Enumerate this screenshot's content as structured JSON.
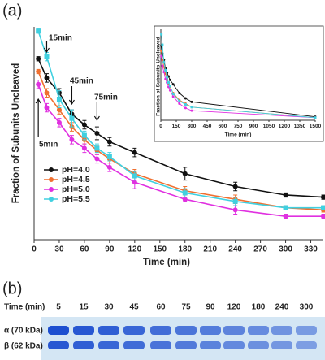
{
  "chart_data": [
    {
      "type": "line",
      "ylabel": "Fraction of Subunits Uncleaved",
      "xlabel": "Time (min)",
      "x": [
        5,
        15,
        30,
        45,
        60,
        75,
        90,
        120,
        180,
        240,
        300,
        345
      ],
      "xlim": [
        0,
        345
      ],
      "xticks": [
        0,
        30,
        60,
        90,
        120,
        150,
        180,
        210,
        240,
        270,
        300,
        330
      ],
      "ylim": [
        0,
        1
      ],
      "legend": "lower-left",
      "annotations": [
        "15min",
        "45min",
        "75min",
        "5min"
      ],
      "series": [
        {
          "name": "pH=4.0",
          "color": "#111111",
          "values": [
            0.85,
            0.76,
            0.69,
            0.59,
            0.54,
            0.5,
            0.46,
            0.41,
            0.31,
            0.25,
            0.21,
            0.2
          ],
          "errors": [
            0.01,
            0.02,
            0.02,
            0.02,
            0.02,
            0.03,
            0.02,
            0.02,
            0.03,
            0.02,
            0.01,
            0.01
          ]
        },
        {
          "name": "pH=4.5",
          "color": "#f07030",
          "values": [
            0.79,
            0.69,
            0.61,
            0.53,
            0.47,
            0.42,
            0.38,
            0.31,
            0.23,
            0.19,
            0.15,
            0.14
          ],
          "errors": [
            0.01,
            0.02,
            0.02,
            0.02,
            0.02,
            0.02,
            0.02,
            0.02,
            0.02,
            0.02,
            0.01,
            0.01
          ]
        },
        {
          "name": "pH=5.0",
          "color": "#e030e0",
          "values": [
            0.73,
            0.62,
            0.55,
            0.47,
            0.43,
            0.38,
            0.34,
            0.27,
            0.19,
            0.14,
            0.11,
            0.11
          ],
          "errors": [
            0.02,
            0.02,
            0.02,
            0.02,
            0.02,
            0.02,
            0.02,
            0.03,
            0.01,
            0.02,
            0.01,
            0.01
          ]
        },
        {
          "name": "pH=5.5",
          "color": "#40d0e0",
          "values": [
            0.98,
            0.86,
            0.66,
            0.57,
            0.49,
            0.43,
            0.39,
            0.3,
            0.22,
            0.18,
            0.15,
            0.15
          ],
          "errors": [
            0.01,
            0.02,
            0.04,
            0.04,
            0.02,
            0.02,
            0.02,
            0.02,
            0.02,
            0.02,
            0.01,
            0.01
          ]
        }
      ]
    },
    {
      "type": "line",
      "ylabel": "Fraction of Subunits Uncleaved",
      "xlabel": "Time (min)",
      "x": [
        5,
        15,
        30,
        45,
        60,
        75,
        90,
        120,
        180,
        240,
        300,
        1500
      ],
      "xlim": [
        0,
        1500
      ],
      "xticks": [
        0,
        150,
        300,
        450,
        600,
        750,
        900,
        1050,
        1200,
        1350,
        1500
      ],
      "ylim": [
        0,
        1
      ],
      "series": [
        {
          "name": "pH=4.0",
          "color": "#111111",
          "values": [
            0.85,
            0.76,
            0.69,
            0.59,
            0.54,
            0.5,
            0.46,
            0.41,
            0.31,
            0.25,
            0.21,
            0.04
          ]
        },
        {
          "name": "pH=4.5",
          "color": "#f07030",
          "values": [
            0.79,
            0.69,
            0.61,
            0.53,
            0.47,
            0.42,
            0.38,
            0.31,
            0.23,
            0.19,
            0.15,
            0.03
          ]
        },
        {
          "name": "pH=5.0",
          "color": "#e030e0",
          "values": [
            0.73,
            0.62,
            0.55,
            0.47,
            0.43,
            0.38,
            0.34,
            0.27,
            0.19,
            0.14,
            0.11,
            0.03
          ]
        },
        {
          "name": "pH=5.5",
          "color": "#40d0e0",
          "values": [
            0.98,
            0.86,
            0.66,
            0.57,
            0.49,
            0.43,
            0.39,
            0.3,
            0.22,
            0.18,
            0.15,
            0.03
          ]
        }
      ]
    }
  ],
  "panel_labels": [
    "(a)",
    "(b)"
  ],
  "gel": {
    "header": "Time (min)",
    "lanes": [
      "5",
      "15",
      "30",
      "45",
      "60",
      "75",
      "90",
      "120",
      "180",
      "240",
      "300"
    ],
    "rows": [
      "α (70 kDa)",
      "β (62 kDa)"
    ]
  }
}
